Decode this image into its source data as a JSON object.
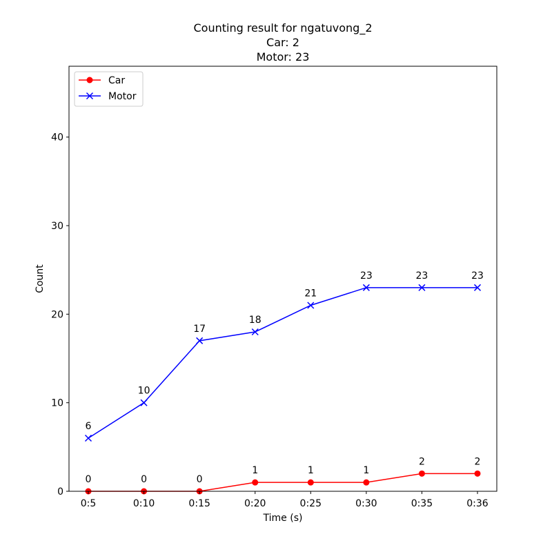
{
  "chart_data": {
    "type": "line",
    "title": "Counting result for ngatuvong_2",
    "subtitle_lines": [
      "Car: 2",
      "Motor: 23"
    ],
    "xlabel": "Time (s)",
    "ylabel": "Count",
    "categories": [
      "0:5",
      "0:10",
      "0:15",
      "0:20",
      "0:25",
      "0:30",
      "0:35",
      "0:36"
    ],
    "ylim": [
      0,
      48
    ],
    "yticks": [
      0,
      10,
      20,
      30,
      40
    ],
    "grid": false,
    "legend_position": "top-left",
    "series": [
      {
        "name": "Car",
        "color": "#ff0000",
        "marker": "circle",
        "values": [
          0,
          0,
          0,
          1,
          1,
          1,
          2,
          2
        ]
      },
      {
        "name": "Motor",
        "color": "#0000ff",
        "marker": "x",
        "values": [
          6,
          10,
          17,
          18,
          21,
          23,
          23,
          23
        ]
      }
    ]
  }
}
